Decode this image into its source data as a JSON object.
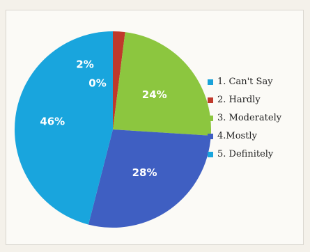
{
  "chart_data": {
    "type": "pie",
    "slices": [
      {
        "label": "1. Can't Say",
        "value": 0,
        "display": "0%",
        "color": "#1aa2d9"
      },
      {
        "label": "2. Hardly",
        "value": 2,
        "display": "2%",
        "color": "#c0392b"
      },
      {
        "label": "3. Moderately",
        "value": 24,
        "display": "24%",
        "color": "#8cc63f"
      },
      {
        "label": "4.Mostly",
        "value": 28,
        "display": "28%",
        "color": "#3f5fc2"
      },
      {
        "label": "5. Definitely",
        "value": 46,
        "display": "46%",
        "color": "#19a5dd"
      }
    ],
    "legend_position": "right"
  }
}
